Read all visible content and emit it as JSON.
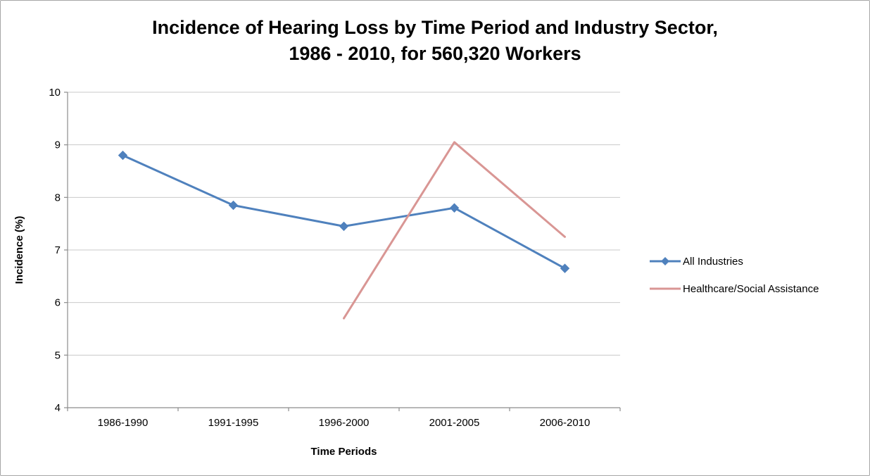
{
  "title": {
    "line1": "Incidence of Hearing Loss by Time Period and Industry Sector,",
    "line2": "1986 - 2010, for 560,320 Workers"
  },
  "chart_data": {
    "type": "line",
    "categories": [
      "1986-1990",
      "1991-1995",
      "1996-2000",
      "2001-2005",
      "2006-2010"
    ],
    "series": [
      {
        "name": "All Industries",
        "color": "#4f81bd",
        "marker": "diamond",
        "values": [
          8.8,
          7.85,
          7.45,
          7.8,
          6.65
        ]
      },
      {
        "name": "Healthcare/Social Assistance",
        "color": "#d99694",
        "marker": "none",
        "values": [
          null,
          null,
          5.7,
          9.05,
          7.25
        ]
      }
    ],
    "xlabel": "Time Periods",
    "ylabel": "Incidence (%)",
    "ylim": [
      4,
      10
    ],
    "ytick_step": 1,
    "grid": "horizontal",
    "legend_position": "right",
    "gridline_color": "#c9c9c9",
    "axis_color": "#8c8c8c",
    "text_color": "#000000"
  }
}
